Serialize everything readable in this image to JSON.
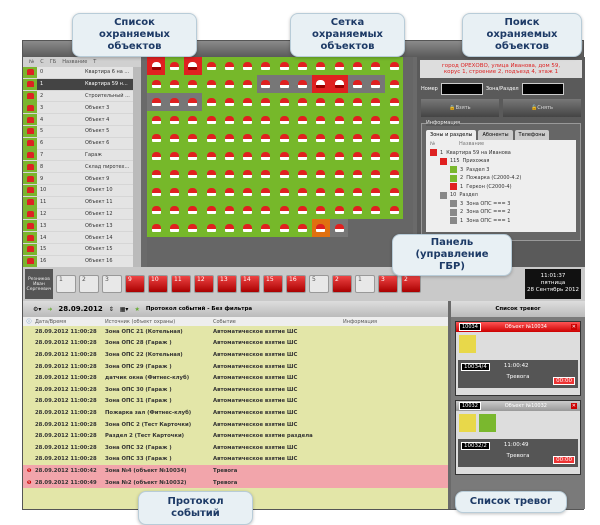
{
  "callouts": {
    "list": "Список охраняемых объектов",
    "grid": "Сетка охраняемых объектов",
    "search": "Поиск охраняемых объектов",
    "panel": "Панель (управление ГБР)",
    "protocol": "Протокол событий",
    "alarms": "Список тревог"
  },
  "objects_list": {
    "headers": [
      "№",
      "С",
      "ГБ",
      "Название",
      "Т"
    ],
    "rows": [
      {
        "n": "0",
        "name": "Квартира 6 на ..."
      },
      {
        "n": "1",
        "name": "Квартира 59 н..."
      },
      {
        "n": "2",
        "name": "Строительный ..."
      },
      {
        "n": "3",
        "name": "Объект 3"
      },
      {
        "n": "4",
        "name": "Объект 4"
      },
      {
        "n": "5",
        "name": "Объект 5"
      },
      {
        "n": "6",
        "name": "Объект 6"
      },
      {
        "n": "7",
        "name": "Гараж"
      },
      {
        "n": "8",
        "name": "Склад пиротех..."
      },
      {
        "n": "9",
        "name": "Объект 9"
      },
      {
        "n": "10",
        "name": "Объект 10"
      },
      {
        "n": "11",
        "name": "Объект 11"
      },
      {
        "n": "12",
        "name": "Объект 12"
      },
      {
        "n": "13",
        "name": "Объект 13"
      },
      {
        "n": "14",
        "name": "Объект 14"
      },
      {
        "n": "15",
        "name": "Объект 15"
      },
      {
        "n": "16",
        "name": "Объект 16"
      }
    ],
    "selected_index": 1
  },
  "grid_states": [
    "rgrggggggggggg",
    "ggggggxxxrrxxg",
    "xxxggggggggggg",
    "gggggggggggggg",
    "gggggggggggggg",
    "gggggggggggggg",
    "gggggggggggggg",
    "gggggggggggggg",
    "gggggggggggggg",
    "gggggggggoxeee"
  ],
  "search": {
    "address_line1": "город ОРЕХОВО, улица Иванова, дом 59,",
    "address_line2": "корус 1, строение 2, подъезд 4, этаж 1",
    "number_label": "Номер",
    "zone_label": "Зона/Раздел",
    "arm_button": "Взять",
    "disarm_button": "Снять",
    "info_label": "Информация",
    "tabs": [
      "Зоны и разделы",
      "Абоненты",
      "Телефоны"
    ],
    "tree_headers": [
      "№",
      "Название"
    ],
    "tree": [
      {
        "n": "1",
        "name": "Квартира 59 на Иванова",
        "color": "#d22",
        "indent": 0
      },
      {
        "n": "115",
        "name": "Прихожая",
        "color": "#e02020",
        "indent": 1
      },
      {
        "n": "3",
        "name": "Раздел 3",
        "color": "#7ab82e",
        "indent": 2
      },
      {
        "n": "2",
        "name": "Пожарка (С2000-4.2)",
        "color": "#7ab82e",
        "indent": 2
      },
      {
        "n": "1",
        "name": "Геркон (С2000-4)",
        "color": "#e02020",
        "indent": 2
      },
      {
        "n": "10",
        "name": "Раздел",
        "color": "#888",
        "indent": 1
      },
      {
        "n": "3",
        "name": "Зона ОПС === 3",
        "color": "#888",
        "indent": 2
      },
      {
        "n": "2",
        "name": "Зона ОПС === 2",
        "color": "#888",
        "indent": 2
      },
      {
        "n": "1",
        "name": "Зона ОПС === 1",
        "color": "#888",
        "indent": 2
      }
    ]
  },
  "gbr": {
    "operator": "Резников Иван Сергеевич",
    "cars": [
      {
        "n": "1",
        "red": false
      },
      {
        "n": "2",
        "red": false
      },
      {
        "n": "3",
        "red": false
      },
      {
        "n": "9",
        "red": true
      },
      {
        "n": "10",
        "red": true
      },
      {
        "n": "11",
        "red": true
      },
      {
        "n": "12",
        "red": true
      },
      {
        "n": "13",
        "red": true
      },
      {
        "n": "14",
        "red": true
      },
      {
        "n": "15",
        "red": true
      },
      {
        "n": "16",
        "red": true
      },
      {
        "n": "5",
        "red": false
      },
      {
        "n": "2",
        "red": true
      },
      {
        "n": "1",
        "red": false
      },
      {
        "n": "3",
        "red": true
      },
      {
        "n": "2",
        "red": true
      }
    ],
    "clock": {
      "time": "11:01:37",
      "day": "пятница",
      "date": "28 Сентябрь 2012"
    }
  },
  "toolbar": {
    "date": "28.09.2012",
    "title": "Протокол событий - Без фильтра"
  },
  "events": {
    "headers": [
      "Дата/Время",
      "Источник (объект охраны)",
      "Событие",
      "Информация"
    ],
    "rows": [
      {
        "dt": "28.09.2012 11:00:28",
        "src": "Зона ОПС 21 (Котельная)",
        "ev": "Автоматическое взятие ШС",
        "alarm": false
      },
      {
        "dt": "28.09.2012 11:00:28",
        "src": "Зона ОПС 28 (Гараж )",
        "ev": "Автоматическое взятие ШС",
        "alarm": false
      },
      {
        "dt": "28.09.2012 11:00:28",
        "src": "Зона ОПС 22 (Котельная)",
        "ev": "Автоматическое взятие ШС",
        "alarm": false
      },
      {
        "dt": "28.09.2012 11:00:28",
        "src": "Зона ОПС 29 (Гараж )",
        "ev": "Автоматическое взятие ШС",
        "alarm": false
      },
      {
        "dt": "28.09.2012 11:00:28",
        "src": "датчик окна (Фитнес-клуб)",
        "ev": "Автоматическое взятие ШС",
        "alarm": false
      },
      {
        "dt": "28.09.2012 11:00:28",
        "src": "Зона ОПС 30 (Гараж )",
        "ev": "Автоматическое взятие ШС",
        "alarm": false
      },
      {
        "dt": "28.09.2012 11:00:28",
        "src": "Зона ОПС 31 (Гараж )",
        "ev": "Автоматическое взятие ШС",
        "alarm": false
      },
      {
        "dt": "28.09.2012 11:00:28",
        "src": "Пожарка зал (Фитнес-клуб)",
        "ev": "Автоматическое взятие ШС",
        "alarm": false
      },
      {
        "dt": "28.09.2012 11:00:28",
        "src": "Зона ОПС 2 (Тест Карточки)",
        "ev": "Автоматическое взятие ШС",
        "alarm": false
      },
      {
        "dt": "28.09.2012 11:00:28",
        "src": "Раздел 2 (Тест Карточки)",
        "ev": "Автоматическое взятие раздела",
        "alarm": false
      },
      {
        "dt": "28.09.2012 11:00:28",
        "src": "Зона ОПС 32 (Гараж )",
        "ev": "Автоматическое взятие ШС",
        "alarm": false
      },
      {
        "dt": "28.09.2012 11:00:28",
        "src": "Зона ОПС 33 (Гараж )",
        "ev": "Автоматическое взятие ШС",
        "alarm": false
      },
      {
        "dt": "28.09.2012 11:00:42",
        "src": "Зона №4 (объект №10034)",
        "ev": "Тревога",
        "alarm": true
      },
      {
        "dt": "28.09.2012 11:00:49",
        "src": "Зона №2 (объект №10032)",
        "ev": "Тревога",
        "alarm": true
      }
    ]
  },
  "alarms": {
    "title": "Список тревог",
    "cards": [
      {
        "id": "10034",
        "object": "Объект №10034",
        "zone": "10034/4",
        "time": "11:00:42",
        "event": "Тревога",
        "timer": "00:00",
        "header": "red",
        "icons": [
          "y"
        ]
      },
      {
        "id": "10032",
        "object": "Объект №10032",
        "zone": "10032/2",
        "time": "11:00:49",
        "event": "Тревога",
        "timer": "00:00",
        "header": "gray",
        "icons": [
          "y",
          "g"
        ]
      }
    ]
  }
}
